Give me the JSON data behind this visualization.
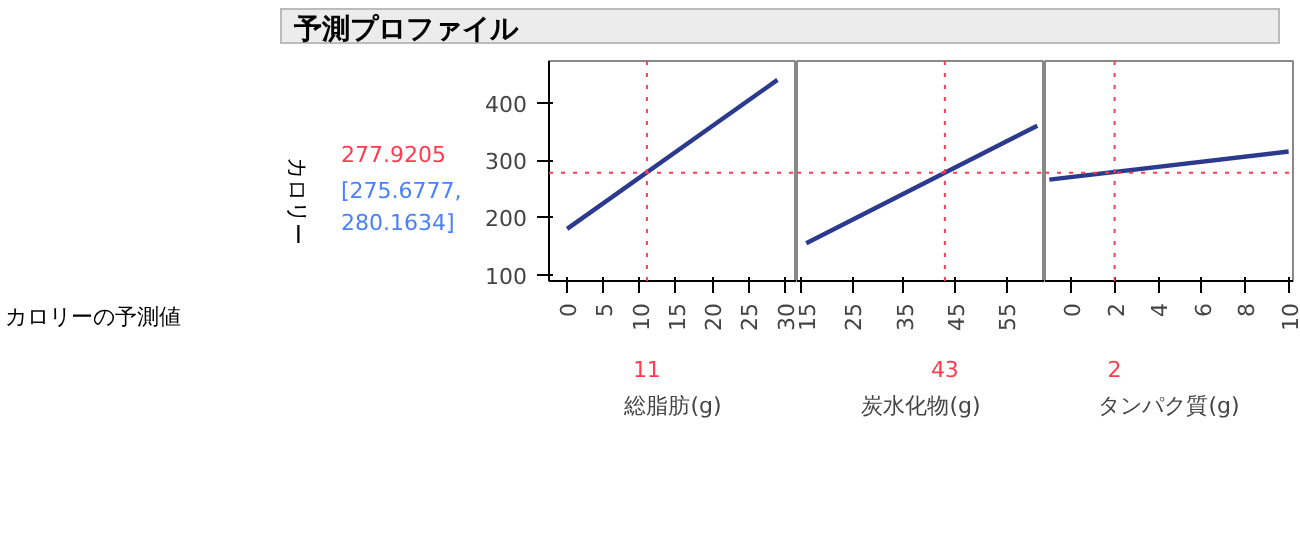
{
  "chart_data": [
    {
      "type": "line",
      "title": "予測プロファイル",
      "ylabel": "カロリー",
      "xlabel": "総脂肪(g)",
      "x": [
        0,
        29
      ],
      "series": [
        {
          "color": "#2b3a8c",
          "values": [
            180,
            440
          ]
        }
      ],
      "xlim": [
        -2.5,
        31.7
      ],
      "xticks": [
        0,
        5,
        10,
        15,
        20,
        25,
        30
      ],
      "ylim": [
        89,
        473
      ],
      "yticks": [
        100,
        200,
        300,
        400
      ],
      "ref_lines": [
        {
          "axis": "x",
          "value": 11,
          "label": "11",
          "color": "#ff3b4f",
          "line_style": "dotted"
        },
        {
          "axis": "y",
          "value": 277.9205,
          "label": "277.9205",
          "color": "#ff3b4f",
          "line_style": "dotted"
        }
      ],
      "annotations": [
        "[275.6777, 280.1634]",
        "カロリーの予測値"
      ],
      "grid": false
    },
    {
      "type": "line",
      "xlabel": "炭水化物(g)",
      "x": [
        16,
        61
      ],
      "series": [
        {
          "color": "#2b3a8c",
          "values": [
            155,
            360
          ]
        }
      ],
      "xlim": [
        14.2,
        62.5
      ],
      "xticks": [
        15,
        25,
        35,
        45,
        55
      ],
      "ylim": [
        89,
        473
      ],
      "yticks": [
        100,
        200,
        300,
        400
      ],
      "tick_labels": "x",
      "ref_lines": [
        {
          "axis": "x",
          "value": 43,
          "label": "43",
          "color": "#ff3b4f",
          "line_style": "dotted"
        },
        {
          "axis": "y",
          "value": 277.9205,
          "label": null,
          "color": "#ff3b4f",
          "line_style": "dotted"
        }
      ],
      "grid": false
    },
    {
      "type": "line",
      "xlabel": "タンパク質(g)",
      "x": [
        -1,
        10
      ],
      "series": [
        {
          "color": "#2b3a8c",
          "values": [
            266,
            315
          ]
        }
      ],
      "xlim": [
        -1.2,
        10.2
      ],
      "xticks": [
        0,
        2,
        4,
        6,
        8,
        10
      ],
      "ylim": [
        89,
        473
      ],
      "yticks": [
        100,
        200,
        300,
        400
      ],
      "tick_labels": "x",
      "ref_lines": [
        {
          "axis": "x",
          "value": 2,
          "label": "2",
          "color": "#ff3b4f",
          "line_style": "dotted"
        },
        {
          "axis": "y",
          "value": 277.9205,
          "label": null,
          "color": "#ff3b4f",
          "line_style": "dotted"
        }
      ],
      "grid": false
    }
  ]
}
